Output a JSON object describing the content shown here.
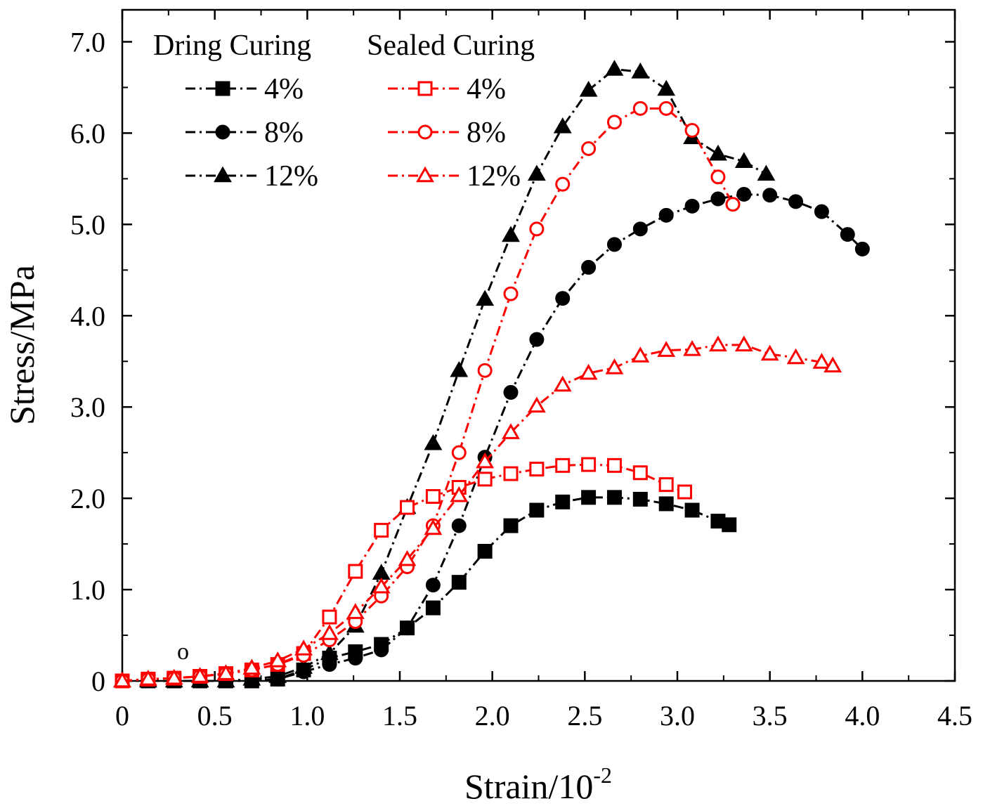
{
  "chart_data": {
    "type": "line",
    "title": "",
    "xlabel": "Strain/10",
    "xlabel_sup": "-2",
    "ylabel": "Stress/MPa",
    "xlim": [
      0,
      4.5
    ],
    "ylim": [
      0,
      7.0
    ],
    "x_ticks": [
      0,
      0.5,
      1.0,
      1.5,
      2.0,
      2.5,
      3.0,
      3.5,
      4.0,
      4.5
    ],
    "x_tick_labels": [
      "0",
      "0.5",
      "1.0",
      "1.5",
      "2.0",
      "2.5",
      "3.0",
      "3.5",
      "4.0",
      "4.5"
    ],
    "y_ticks": [
      0,
      1,
      2,
      3,
      4,
      5,
      6,
      7
    ],
    "y_tick_labels": [
      "0",
      "1.0",
      "2.0",
      "3.0",
      "4.0",
      "5.0",
      "6.0",
      "7.0"
    ],
    "grid": false,
    "annotation": "o",
    "legend": {
      "placement": "top-left",
      "headers": [
        "Dring Curing",
        "Sealed Curing"
      ]
    },
    "series": [
      {
        "name": "4%",
        "group": "Dring Curing",
        "color": "#000000",
        "marker": "square",
        "filled": true,
        "x": [
          0.0,
          0.14,
          0.28,
          0.42,
          0.56,
          0.7,
          0.84,
          0.98,
          1.12,
          1.26,
          1.4,
          1.54,
          1.68,
          1.82,
          1.96,
          2.1,
          2.24,
          2.38,
          2.52,
          2.66,
          2.8,
          2.94,
          3.08,
          3.22,
          3.28
        ],
        "y": [
          0.0,
          0.0,
          0.0,
          0.0,
          0.0,
          0.0,
          0.02,
          0.12,
          0.25,
          0.32,
          0.4,
          0.58,
          0.8,
          1.08,
          1.42,
          1.7,
          1.87,
          1.96,
          2.01,
          2.01,
          1.99,
          1.94,
          1.87,
          1.75,
          1.71
        ]
      },
      {
        "name": "8%",
        "group": "Dring Curing",
        "color": "#000000",
        "marker": "circle",
        "filled": true,
        "x": [
          0.0,
          0.14,
          0.28,
          0.42,
          0.56,
          0.7,
          0.84,
          0.98,
          1.12,
          1.26,
          1.4,
          1.54,
          1.68,
          1.82,
          1.96,
          2.1,
          2.24,
          2.38,
          2.52,
          2.66,
          2.8,
          2.94,
          3.08,
          3.22,
          3.36,
          3.5,
          3.64,
          3.78,
          3.92,
          4.0
        ],
        "y": [
          0.0,
          0.0,
          0.0,
          0.0,
          0.0,
          0.0,
          0.02,
          0.1,
          0.18,
          0.25,
          0.34,
          0.58,
          1.05,
          1.7,
          2.45,
          3.16,
          3.74,
          4.19,
          4.53,
          4.78,
          4.95,
          5.1,
          5.2,
          5.28,
          5.33,
          5.32,
          5.25,
          5.14,
          4.89,
          4.73
        ]
      },
      {
        "name": "12%",
        "group": "Dring Curing",
        "color": "#000000",
        "marker": "triangle",
        "filled": true,
        "x": [
          0.0,
          0.14,
          0.28,
          0.42,
          0.56,
          0.7,
          0.84,
          0.98,
          1.12,
          1.26,
          1.4,
          1.54,
          1.68,
          1.82,
          1.96,
          2.1,
          2.24,
          2.38,
          2.52,
          2.66,
          2.8,
          2.94,
          3.08,
          3.22,
          3.36,
          3.48
        ],
        "y": [
          0.0,
          0.0,
          0.0,
          0.0,
          0.0,
          0.02,
          0.05,
          0.15,
          0.3,
          0.6,
          1.18,
          1.9,
          2.6,
          3.4,
          4.18,
          4.88,
          5.55,
          6.07,
          6.47,
          6.7,
          6.67,
          6.48,
          5.95,
          5.77,
          5.69,
          5.55
        ]
      },
      {
        "name": "4%",
        "group": "Sealed Curing",
        "color": "#ff0000",
        "marker": "square",
        "filled": false,
        "x": [
          0.0,
          0.14,
          0.28,
          0.42,
          0.56,
          0.7,
          0.84,
          0.98,
          1.12,
          1.26,
          1.4,
          1.54,
          1.68,
          1.82,
          1.96,
          2.1,
          2.24,
          2.38,
          2.52,
          2.66,
          2.8,
          2.94,
          3.04
        ],
        "y": [
          0.0,
          0.02,
          0.03,
          0.05,
          0.08,
          0.12,
          0.18,
          0.3,
          0.7,
          1.2,
          1.65,
          1.9,
          2.02,
          2.12,
          2.21,
          2.27,
          2.32,
          2.36,
          2.37,
          2.36,
          2.28,
          2.15,
          2.07
        ]
      },
      {
        "name": "8%",
        "group": "Sealed Curing",
        "color": "#ff0000",
        "marker": "circle",
        "filled": false,
        "x": [
          0.0,
          0.14,
          0.28,
          0.42,
          0.56,
          0.7,
          0.84,
          0.98,
          1.12,
          1.26,
          1.4,
          1.54,
          1.68,
          1.82,
          1.96,
          2.1,
          2.24,
          2.38,
          2.52,
          2.66,
          2.8,
          2.94,
          3.08,
          3.22,
          3.3
        ],
        "y": [
          0.0,
          0.02,
          0.03,
          0.05,
          0.08,
          0.12,
          0.18,
          0.28,
          0.45,
          0.65,
          0.93,
          1.25,
          1.7,
          2.5,
          3.4,
          4.24,
          4.95,
          5.44,
          5.83,
          6.12,
          6.27,
          6.27,
          6.03,
          5.52,
          5.22
        ]
      },
      {
        "name": "12%",
        "group": "Sealed Curing",
        "color": "#ff0000",
        "marker": "triangle",
        "filled": false,
        "x": [
          0.0,
          0.14,
          0.28,
          0.42,
          0.56,
          0.7,
          0.84,
          0.98,
          1.12,
          1.26,
          1.4,
          1.54,
          1.68,
          1.82,
          1.96,
          2.1,
          2.24,
          2.38,
          2.52,
          2.66,
          2.8,
          2.94,
          3.08,
          3.22,
          3.36,
          3.5,
          3.64,
          3.78,
          3.84
        ],
        "y": [
          0.0,
          0.02,
          0.03,
          0.05,
          0.08,
          0.14,
          0.22,
          0.35,
          0.52,
          0.75,
          1.03,
          1.33,
          1.67,
          2.03,
          2.4,
          2.72,
          3.01,
          3.24,
          3.37,
          3.43,
          3.56,
          3.62,
          3.63,
          3.68,
          3.68,
          3.58,
          3.54,
          3.49,
          3.45
        ]
      }
    ]
  }
}
